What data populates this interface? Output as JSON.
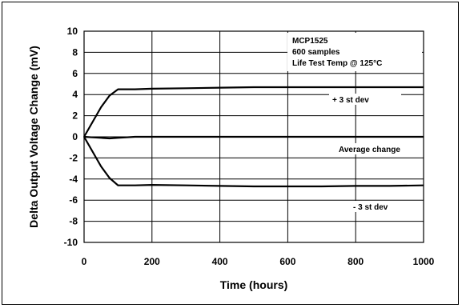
{
  "chart_data": {
    "type": "line",
    "xlabel": "Time (hours)",
    "ylabel": "Delta Output Voltage Change (mV)",
    "xlim": [
      0,
      1000
    ],
    "ylim": [
      -10,
      10
    ],
    "xticks": [
      "0",
      "200",
      "400",
      "600",
      "800",
      "1000"
    ],
    "yticks": [
      "10",
      "8",
      "6",
      "4",
      "2",
      "0",
      "-2",
      "-4",
      "-6",
      "-8",
      "-10"
    ],
    "grid": true,
    "info_lines": [
      "MCP1525",
      "600 samples",
      "Life Test Temp @ 125°C"
    ],
    "series": [
      {
        "name": "+ 3 st dev",
        "x": [
          0,
          25,
          50,
          75,
          100,
          150,
          200,
          300,
          400,
          500,
          600,
          700,
          800,
          900,
          1000
        ],
        "y": [
          0,
          1.4,
          2.8,
          3.9,
          4.5,
          4.5,
          4.55,
          4.6,
          4.65,
          4.7,
          4.7,
          4.7,
          4.7,
          4.7,
          4.7
        ]
      },
      {
        "name": "Average change",
        "x": [
          0,
          25,
          50,
          75,
          100,
          150,
          200,
          300,
          400,
          500,
          600,
          700,
          800,
          900,
          1000
        ],
        "y": [
          0,
          -0.05,
          -0.1,
          -0.15,
          -0.1,
          0,
          0,
          0,
          0,
          0,
          0,
          0,
          0,
          0,
          0
        ]
      },
      {
        "name": "- 3 st dev",
        "x": [
          0,
          25,
          50,
          75,
          100,
          150,
          200,
          300,
          400,
          500,
          600,
          700,
          800,
          900,
          1000
        ],
        "y": [
          0,
          -1.4,
          -2.8,
          -3.9,
          -4.6,
          -4.6,
          -4.55,
          -4.6,
          -4.65,
          -4.7,
          -4.7,
          -4.7,
          -4.65,
          -4.65,
          -4.6
        ]
      }
    ]
  }
}
